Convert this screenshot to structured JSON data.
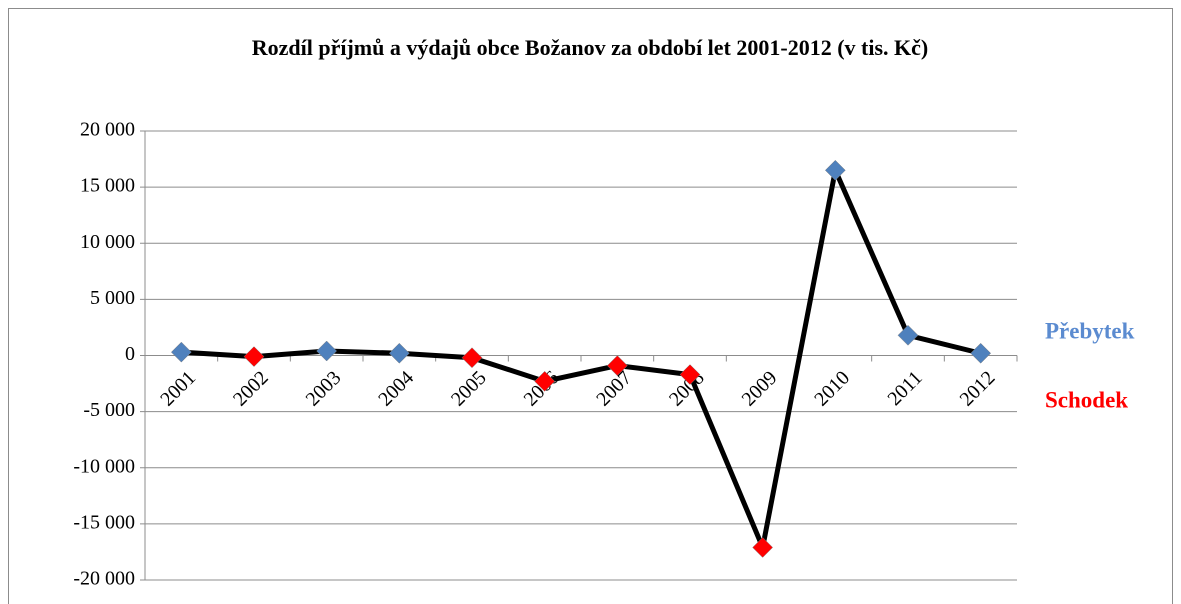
{
  "chart_data": {
    "type": "line",
    "title": "Rozdíl příjmů a výdajů obce Božanov za období let 2001-2012 (v tis. Kč)",
    "categories": [
      "2001",
      "2002",
      "2003",
      "2004",
      "2005",
      "2006",
      "2007",
      "2008",
      "2009",
      "2010",
      "2011",
      "2012"
    ],
    "series": [
      {
        "color": "#000000",
        "values": [
          300,
          -100,
          400,
          200,
          -200,
          -2300,
          -900,
          -1700,
          -17100,
          16500,
          1800,
          200
        ],
        "marker_colors": [
          "#4f81bd",
          "#ff0000",
          "#4f81bd",
          "#4f81bd",
          "#ff0000",
          "#ff0000",
          "#ff0000",
          "#ff0000",
          "#ff0000",
          "#4f81bd",
          "#4f81bd",
          "#4f81bd"
        ]
      }
    ],
    "ylim": [
      -20000,
      20000
    ],
    "yticks": [
      {
        "value": -20000,
        "label": "-20 000"
      },
      {
        "value": -15000,
        "label": "-15 000"
      },
      {
        "value": -10000,
        "label": "-10 000"
      },
      {
        "value": -5000,
        "label": "-5 000"
      },
      0,
      {
        "value": 5000,
        "label": "5 000"
      },
      {
        "value": 10000,
        "label": "10 000"
      },
      {
        "value": 15000,
        "label": "15 000"
      },
      {
        "value": 20000,
        "label": "20 000"
      }
    ],
    "grid": true,
    "annotations": [
      {
        "text": "Přebytek",
        "color": "#5b8bd0"
      },
      {
        "text": "Schodek",
        "color": "#ff0000"
      }
    ]
  }
}
